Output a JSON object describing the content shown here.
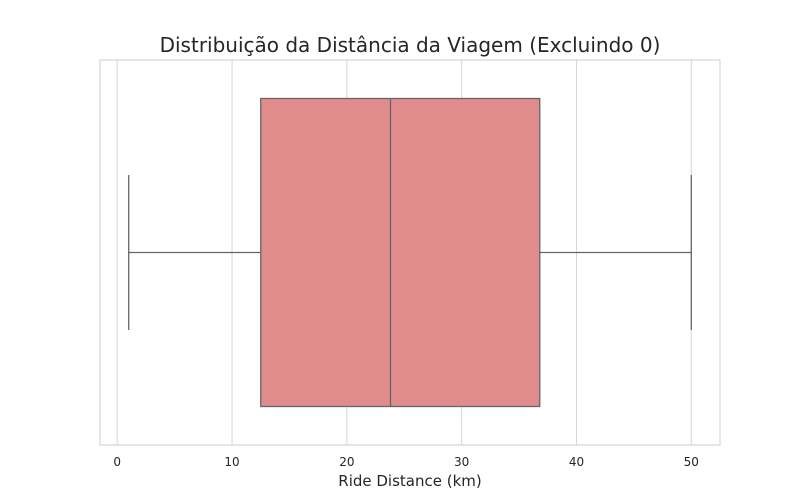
{
  "chart_data": {
    "type": "boxplot",
    "title": "Distribuição da Distância da Viagem (Excluindo 0)",
    "xlabel": "Ride Distance (km)",
    "ylabel": "",
    "orientation": "horizontal",
    "xlim": [
      -1.5,
      52.5
    ],
    "xticks": [
      0,
      10,
      20,
      30,
      40,
      50
    ],
    "grid": true,
    "series": [
      {
        "whisker_low": 1,
        "q1": 12.5,
        "median": 23.8,
        "q3": 36.8,
        "whisker_high": 50
      }
    ],
    "colors": {
      "box_fill": "#e08c8d",
      "line": "#666666",
      "grid": "#d5d5d5",
      "frame": "#cccccc",
      "text": "#262626"
    }
  }
}
